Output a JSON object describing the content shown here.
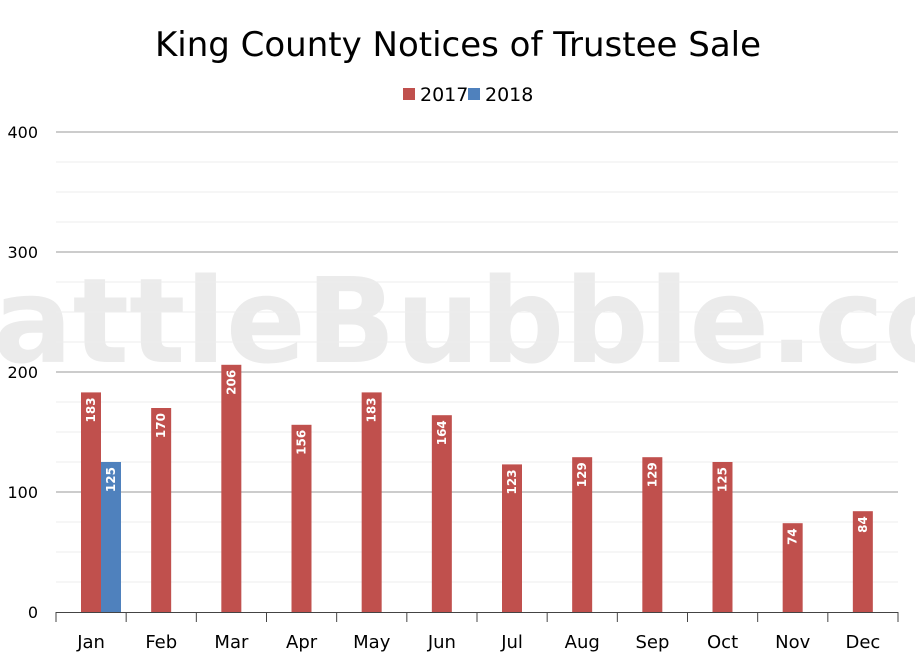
{
  "chart_data": {
    "type": "bar",
    "title": "King County Notices of Trustee Sale",
    "watermark": "SeattleBubble.com",
    "categories": [
      "Jan",
      "Feb",
      "Mar",
      "Apr",
      "May",
      "Jun",
      "Jul",
      "Aug",
      "Sep",
      "Oct",
      "Nov",
      "Dec"
    ],
    "series": [
      {
        "name": "2017",
        "color": "#c0504d",
        "values": [
          183,
          170,
          206,
          156,
          183,
          164,
          123,
          129,
          129,
          125,
          74,
          84
        ]
      },
      {
        "name": "2018",
        "color": "#4f81bd",
        "values": [
          125,
          null,
          null,
          null,
          null,
          null,
          null,
          null,
          null,
          null,
          null,
          null
        ]
      }
    ],
    "ylim": [
      0,
      400
    ],
    "yticks": [
      0,
      100,
      200,
      300,
      400
    ],
    "xlabel": "",
    "ylabel": "",
    "grid": true,
    "legend": "top-center"
  }
}
